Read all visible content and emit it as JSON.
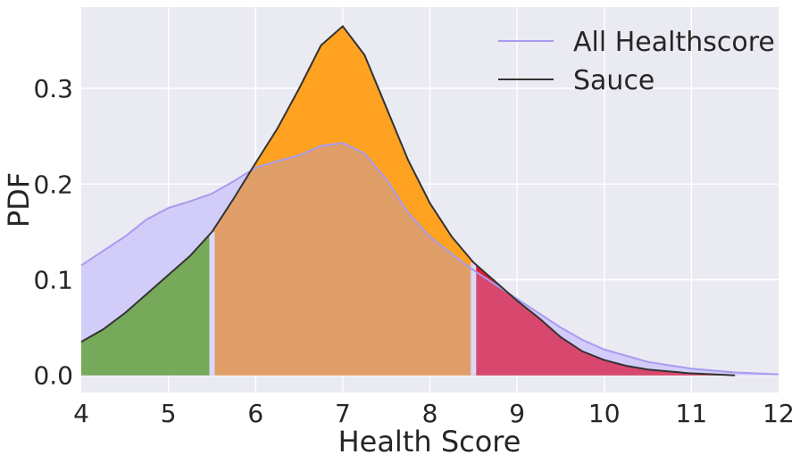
{
  "chart_data": {
    "type": "area",
    "title": "",
    "xlabel": "Health Score",
    "ylabel": "PDF",
    "xlim": [
      4,
      12
    ],
    "ylim": [
      -0.018,
      0.385
    ],
    "xticks": [
      "4",
      "5",
      "6",
      "7",
      "8",
      "9",
      "10",
      "11",
      "12"
    ],
    "yticks": [
      "0.0",
      "0.1",
      "0.2",
      "0.3"
    ],
    "grid": true,
    "legend_position": "top-right",
    "colors": {
      "background": "#EAEAF2",
      "grid": "#FFFFFF",
      "all_line": "#A89BF0",
      "all_fill": "#D2CDF8",
      "sauce_line": "#333333",
      "low_region": "#76A95A",
      "mid_region": "#FFA221",
      "high_region": "#E21C2F",
      "overlap_mid": "#E09E69",
      "overlap_high": "#D8486E",
      "divider": "#DCD8F6"
    },
    "regions": [
      {
        "from": 4,
        "to": 5.5,
        "color": "low_region"
      },
      {
        "from": 5.5,
        "to": 8.5,
        "color": "mid_region"
      },
      {
        "from": 8.5,
        "to": 11.5,
        "color": "high_region"
      }
    ],
    "series": [
      {
        "name": "All Healthscore",
        "x": [
          4.0,
          4.25,
          4.5,
          4.75,
          5.0,
          5.25,
          5.5,
          5.75,
          6.0,
          6.25,
          6.5,
          6.75,
          7.0,
          7.25,
          7.5,
          7.75,
          8.0,
          8.25,
          8.5,
          8.75,
          9.0,
          9.25,
          9.5,
          9.75,
          10.0,
          10.5,
          11.0,
          11.5,
          12.0
        ],
        "y": [
          0.115,
          0.13,
          0.145,
          0.163,
          0.175,
          0.182,
          0.19,
          0.203,
          0.217,
          0.224,
          0.23,
          0.24,
          0.243,
          0.232,
          0.205,
          0.17,
          0.145,
          0.127,
          0.11,
          0.095,
          0.08,
          0.065,
          0.05,
          0.037,
          0.027,
          0.014,
          0.007,
          0.003,
          0.001
        ]
      },
      {
        "name": "Sauce",
        "x": [
          4.0,
          4.25,
          4.5,
          4.75,
          5.0,
          5.25,
          5.5,
          5.75,
          6.0,
          6.25,
          6.5,
          6.75,
          7.0,
          7.25,
          7.5,
          7.75,
          8.0,
          8.25,
          8.5,
          8.75,
          9.0,
          9.25,
          9.5,
          9.75,
          10.0,
          10.25,
          10.5,
          10.75,
          11.0,
          11.25,
          11.5
        ],
        "y": [
          0.035,
          0.048,
          0.065,
          0.085,
          0.105,
          0.125,
          0.15,
          0.185,
          0.222,
          0.258,
          0.3,
          0.345,
          0.365,
          0.335,
          0.28,
          0.225,
          0.18,
          0.145,
          0.118,
          0.098,
          0.078,
          0.06,
          0.04,
          0.025,
          0.016,
          0.01,
          0.006,
          0.004,
          0.002,
          0.001,
          0.0
        ]
      }
    ]
  }
}
